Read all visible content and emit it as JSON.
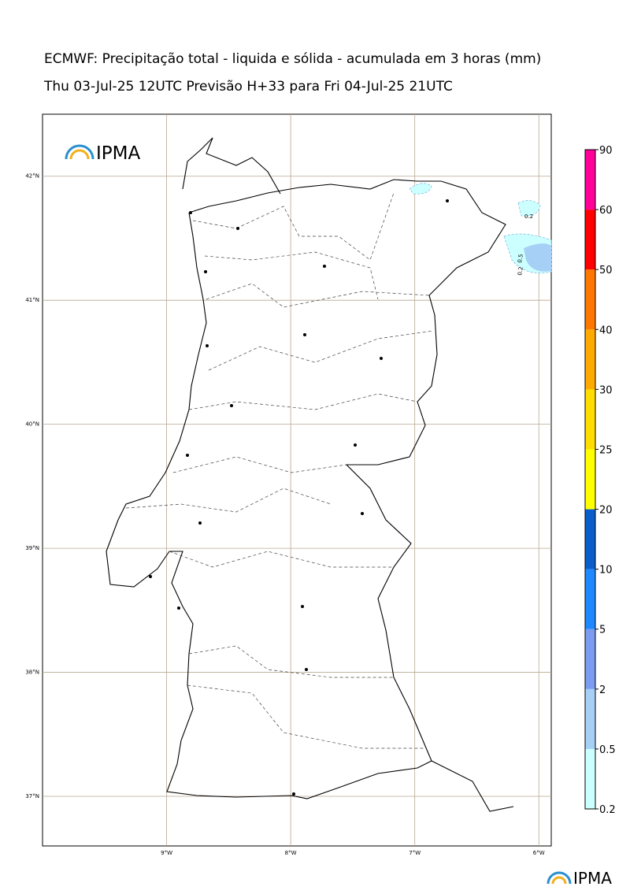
{
  "header": {
    "title": "ECMWF: Precipitação total - liquida e sólida - acumulada em 3 horas (mm)",
    "subtitle": "Thu 03-Jul-25 12UTC Previsão H+33 para Fri 04-Jul-25 21UTC"
  },
  "logo": {
    "top": "IPMA",
    "bottom": "IPMA"
  },
  "map": {
    "xlim": [
      -10,
      -5.9
    ],
    "ylim": [
      36.6,
      42.5
    ],
    "lat_ticks": [
      {
        "value": 42,
        "label": "42°N"
      },
      {
        "value": 41,
        "label": "41°N"
      },
      {
        "value": 40,
        "label": "40°N"
      },
      {
        "value": 39,
        "label": "39°N"
      },
      {
        "value": 38,
        "label": "38°N"
      },
      {
        "value": 37,
        "label": "37°N"
      }
    ],
    "lon_ticks": [
      {
        "value": -9,
        "label": "9°W"
      },
      {
        "value": -8,
        "label": "8°W"
      },
      {
        "value": -7,
        "label": "7°W"
      },
      {
        "value": -6,
        "label": "6°W"
      }
    ],
    "contour_labels": [
      "0.2",
      "0.2",
      "0.5"
    ]
  },
  "colorbar": {
    "levels": [
      0.2,
      0.5,
      2,
      5,
      10,
      20,
      25,
      30,
      40,
      50,
      60,
      90
    ],
    "colors": [
      "#ccffff",
      "#a6d0f5",
      "#7b9cf0",
      "#1e88ff",
      "#0a5ecc",
      "#ffff00",
      "#ffdd00",
      "#ffaa00",
      "#ff7700",
      "#ff0000",
      "#ff0099"
    ]
  }
}
